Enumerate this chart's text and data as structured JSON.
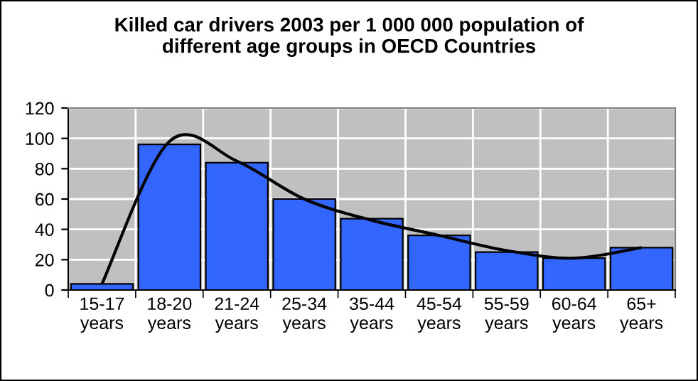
{
  "chart_data": {
    "type": "bar",
    "title": "Killed car drivers 2003 per 1 000 000 population of\ndifferent age groups in OECD Countries",
    "categories": [
      "15-17\nyears",
      "18-20\nyears",
      "21-24\nyears",
      "25-34\nyears",
      "35-44\nyears",
      "45-54\nyears",
      "55-59\nyears",
      "60-64\nyears",
      "65+\nyears"
    ],
    "series": [
      {
        "color": "#3366ff",
        "values": [
          4,
          96,
          84,
          60,
          47,
          36,
          25,
          21,
          28
        ]
      },
      {
        "type": "line",
        "color": "#000000",
        "values": [
          4,
          98,
          85,
          60,
          46,
          36,
          26,
          21,
          28
        ]
      }
    ],
    "ylim": [
      0,
      120
    ],
    "yticks": [
      0,
      20,
      40,
      60,
      80,
      100,
      120
    ],
    "grid": true,
    "legend": false,
    "marker": "none",
    "line_style": "solid"
  }
}
